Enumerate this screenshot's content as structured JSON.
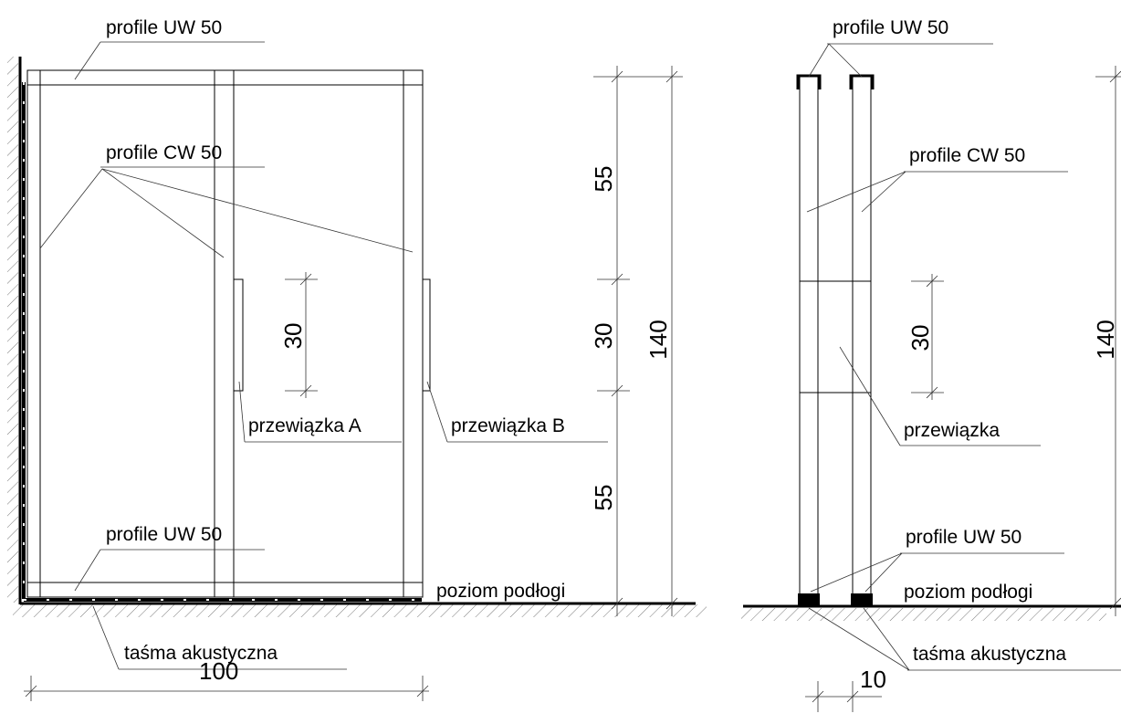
{
  "front_view": {
    "labels": {
      "uw_top": "profile UW 50",
      "cw": "profile CW 50",
      "przewiazka_a": "przewiązka A",
      "przewiazka_b": "przewiązka B",
      "uw_bottom": "profile UW 50",
      "floor": "poziom podłogi",
      "tape": "taśma akustyczna"
    },
    "dimensions": {
      "width": "100",
      "brace_height": "30",
      "upper": "55",
      "middle": "30",
      "lower": "55",
      "total": "140"
    }
  },
  "side_view": {
    "labels": {
      "uw_top": "profile UW 50",
      "cw": "profile CW 50",
      "przewiazka": "przewiązka",
      "uw_bottom": "profile UW 50",
      "floor": "poziom podłogi",
      "tape": "taśma akustyczna"
    },
    "dimensions": {
      "brace_height": "30",
      "total": "140",
      "depth": "10"
    }
  }
}
